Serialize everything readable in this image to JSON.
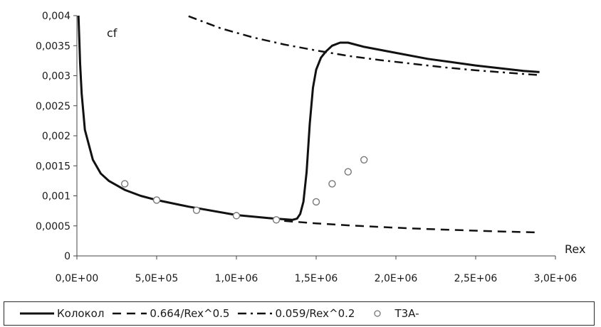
{
  "chart_data": {
    "type": "line",
    "ylabel": "cf",
    "xlabel": "Rex",
    "xlim": [
      0,
      3000000
    ],
    "ylim": [
      0,
      0.004
    ],
    "x_ticks": [
      "0,0E+00",
      "5,0E+05",
      "1,0E+06",
      "1,5E+06",
      "2,0E+06",
      "2,5E+06",
      "3,0E+06"
    ],
    "y_ticks": [
      "0",
      "0,0005",
      "0,001",
      "0,0015",
      "0,002",
      "0,0025",
      "0,003",
      "0,0035",
      "0,004"
    ],
    "grid": false,
    "legend_position": "bottom",
    "series": [
      {
        "name": "Колокол",
        "style": "solid",
        "x": [
          10000,
          15000,
          20000,
          30000,
          50000,
          100000,
          150000,
          200000,
          300000,
          400000,
          500000,
          700000,
          1000000,
          1200000,
          1350000,
          1380000,
          1400000,
          1420000,
          1440000,
          1460000,
          1480000,
          1500000,
          1530000,
          1560000,
          1600000,
          1650000,
          1700000,
          1800000,
          2000000,
          2200000,
          2500000,
          2800000,
          2900000
        ],
        "y": [
          0.004,
          0.0036,
          0.0032,
          0.0027,
          0.0021,
          0.0016,
          0.00137,
          0.00125,
          0.0011,
          0.001,
          0.00093,
          0.00082,
          0.00068,
          0.00063,
          0.0006,
          0.00062,
          0.0007,
          0.0009,
          0.0014,
          0.0022,
          0.0028,
          0.0031,
          0.0033,
          0.0034,
          0.0035,
          0.00355,
          0.00355,
          0.00348,
          0.00338,
          0.00328,
          0.00317,
          0.00308,
          0.00306
        ]
      },
      {
        "name": "0.664/Rex^0.5",
        "style": "dashed",
        "x": [
          1300000,
          1500000,
          1700000,
          1900000,
          2100000,
          2300000,
          2500000,
          2700000,
          2900000
        ],
        "y": [
          0.000582,
          0.000542,
          0.000509,
          0.000482,
          0.000458,
          0.000438,
          0.00042,
          0.000404,
          0.00039
        ]
      },
      {
        "name": "0.059/Rex^0.2",
        "style": "dashdot",
        "x": [
          700000,
          900000,
          1100000,
          1300000,
          1500000,
          1700000,
          1900000,
          2100000,
          2300000,
          2500000,
          2700000,
          2900000
        ],
        "y": [
          0.00399,
          0.00379,
          0.00364,
          0.00352,
          0.00342,
          0.00333,
          0.00326,
          0.0032,
          0.00314,
          0.00309,
          0.00305,
          0.00301
        ]
      },
      {
        "name": "T3A-",
        "style": "markers",
        "x": [
          300000,
          500000,
          750000,
          1000000,
          1250000,
          1500000,
          1600000,
          1700000,
          1800000
        ],
        "y": [
          0.0012,
          0.00093,
          0.00076,
          0.00067,
          0.0006,
          0.0009,
          0.0012,
          0.0014,
          0.0016
        ]
      }
    ]
  }
}
